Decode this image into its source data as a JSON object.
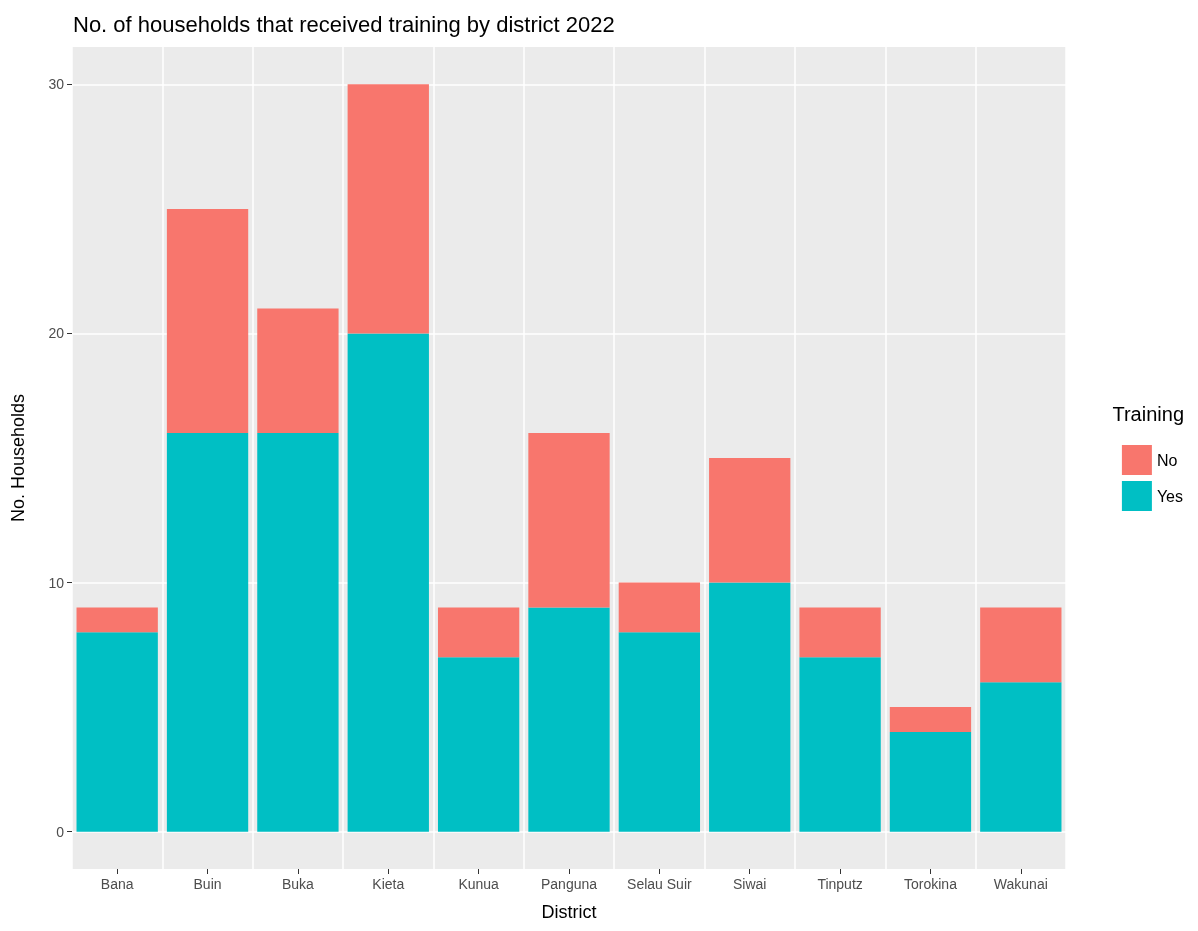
{
  "chart_data": {
    "type": "bar",
    "title": "No. of households that received training by district 2022",
    "xlabel": "District",
    "ylabel": "No. Households",
    "legend_title": "Training",
    "categories": [
      "Bana",
      "Buin",
      "Buka",
      "Kieta",
      "Kunua",
      "Panguna",
      "Selau Suir",
      "Siwai",
      "Tinputz",
      "Torokina",
      "Wakunai"
    ],
    "series": [
      {
        "name": "Yes",
        "color": "#00bfc4",
        "values": [
          8,
          16,
          16,
          20,
          7,
          9,
          8,
          10,
          7,
          4,
          6
        ]
      },
      {
        "name": "No",
        "color": "#f8766d",
        "values": [
          1,
          9,
          5,
          10,
          2,
          7,
          2,
          5,
          2,
          1,
          3
        ]
      }
    ],
    "stacked": true,
    "ylim": [
      -1.5,
      31.5
    ],
    "yticks": [
      0,
      10,
      20,
      30
    ],
    "grid": true,
    "legend": "right"
  }
}
